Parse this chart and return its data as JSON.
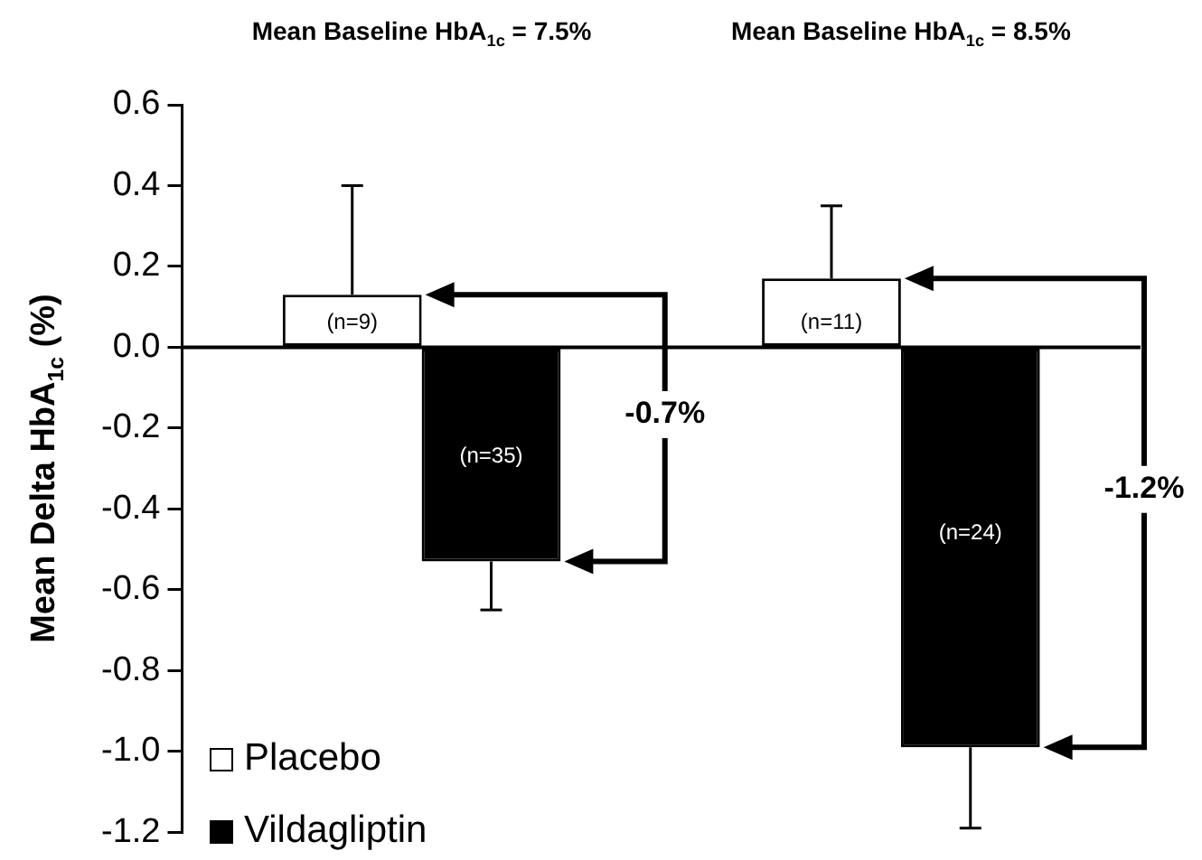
{
  "chart_data": {
    "type": "bar",
    "ylabel": "Mean Delta HbA$_{1c}$ (%)",
    "categories": [
      "Mean Baseline HbA$_{1c}$ = 7.5%",
      "Mean Baseline HbA$_{1c}$ = 8.5%"
    ],
    "series": [
      {
        "name": "Placebo",
        "color": "#ffffff",
        "values": [
          0.13,
          0.17
        ],
        "errors": [
          [
            0.13,
            0.4
          ],
          [
            0.17,
            0.35
          ]
        ]
      },
      {
        "name": "Vildagliptin",
        "color": "#000000",
        "values": [
          -0.53,
          -0.99
        ],
        "errors": [
          [
            -0.65,
            -0.53
          ],
          [
            -1.19,
            -0.99
          ]
        ]
      }
    ],
    "ylim": [
      -1.2,
      0.6
    ],
    "yticks": [
      {
        "value": -1.2,
        "label": "-1.2"
      },
      {
        "value": -1.0,
        "label": "-1.0"
      },
      {
        "value": -0.8,
        "label": "-0.8"
      },
      {
        "value": -0.6,
        "label": "-0.6"
      },
      {
        "value": -0.4,
        "label": "-0.4"
      },
      {
        "value": -0.2,
        "label": "-0.2"
      },
      {
        "value": 0,
        "label": "0.0"
      },
      {
        "value": 0.2,
        "label": "0.2"
      },
      {
        "value": 0.4,
        "label": "0.4"
      },
      {
        "value": 0.6,
        "label": "0.6"
      }
    ],
    "grid": false,
    "ref_lines": [
      {
        "axis": "y",
        "value": 0,
        "color": "#000000"
      }
    ],
    "legend": "bottom left",
    "annotations": [
      {
        "text": "(n=9)",
        "x": "Mean Baseline HbA$_{1c}$ = 7.5%",
        "y": 0.06
      },
      {
        "text": "(n=35)",
        "x": "Mean Baseline HbA$_{1c}$ = 7.5%",
        "y": -0.27
      },
      {
        "text": "(n=11)",
        "x": "Mean Baseline HbA$_{1c}$ = 8.5%",
        "y": 0.06
      },
      {
        "text": "(n=24)",
        "x": "Mean Baseline HbA$_{1c}$ = 8.5%",
        "y": -0.46
      },
      "-0.7%",
      "-1.2%"
    ]
  }
}
